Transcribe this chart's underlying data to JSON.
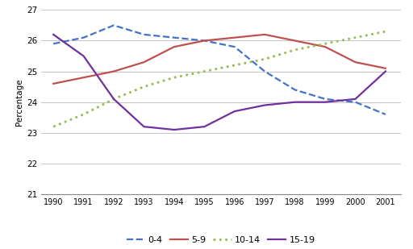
{
  "years": [
    1990,
    1991,
    1992,
    1993,
    1994,
    1995,
    1996,
    1997,
    1998,
    1999,
    2000,
    2001
  ],
  "series": {
    "0-4": [
      25.9,
      26.1,
      26.5,
      26.2,
      26.1,
      26.0,
      25.8,
      25.0,
      24.4,
      24.1,
      24.0,
      23.6
    ],
    "5-9": [
      24.6,
      24.8,
      25.0,
      25.3,
      25.8,
      26.0,
      26.1,
      26.2,
      26.0,
      25.8,
      25.3,
      25.1
    ],
    "10-14": [
      23.2,
      23.6,
      24.1,
      24.5,
      24.8,
      25.0,
      25.2,
      25.4,
      25.7,
      25.9,
      26.1,
      26.3
    ],
    "15-19": [
      26.2,
      25.5,
      24.1,
      23.2,
      23.1,
      23.2,
      23.7,
      23.9,
      24.0,
      24.0,
      24.1,
      25.0
    ]
  },
  "series_order": [
    "0-4",
    "5-9",
    "10-14",
    "15-19"
  ],
  "line_styles": {
    "0-4": {
      "color": "#4472C4",
      "linestyle": "--",
      "linewidth": 1.6,
      "dashes": [
        6,
        3
      ]
    },
    "5-9": {
      "color": "#C0504D",
      "linestyle": "-",
      "linewidth": 1.6
    },
    "10-14": {
      "color": "#9BBB59",
      "linestyle": ":",
      "linewidth": 2.0,
      "dashes": [
        1,
        2
      ]
    },
    "15-19": {
      "color": "#7030A0",
      "linestyle": "-",
      "linewidth": 1.6
    }
  },
  "ylabel": "Percentage",
  "ylim": [
    21,
    27
  ],
  "yticks": [
    21,
    22,
    23,
    24,
    25,
    26,
    27
  ],
  "xlim": [
    1989.6,
    2001.5
  ],
  "background_color": "#FFFFFF",
  "grid_color": "#BBBBBB"
}
